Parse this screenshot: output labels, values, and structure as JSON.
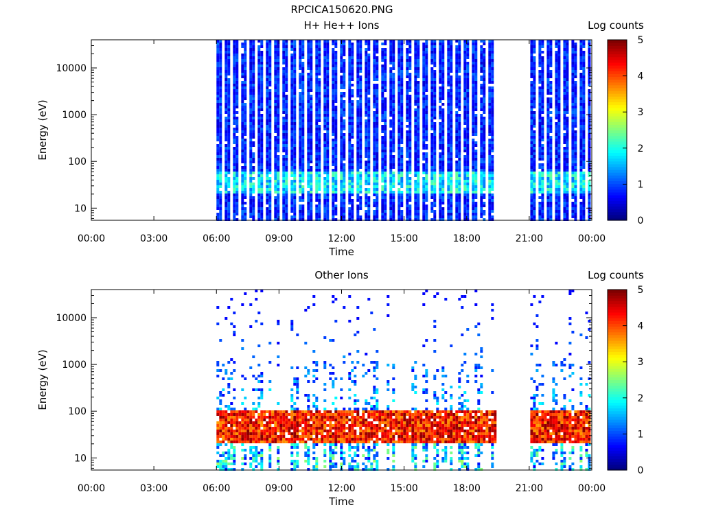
{
  "figure": {
    "filename": "RPCICA150620.PNG"
  },
  "chart_data": [
    {
      "type": "heatmap",
      "title": "H+ He++ Ions",
      "xlabel": "Time",
      "ylabel": "Energy (eV)",
      "colorbar_label": "Log counts",
      "x_tick_labels": [
        "00:00",
        "03:00",
        "06:00",
        "09:00",
        "12:00",
        "15:00",
        "18:00",
        "21:00",
        "00:00"
      ],
      "xlim_hours": [
        0,
        24
      ],
      "ylim_ev": [
        5.5,
        40000
      ],
      "y_scale": "log",
      "y_tick_labels": [
        "10",
        "100",
        "1000",
        "10000"
      ],
      "y_tick_values": [
        10,
        100,
        1000,
        10000
      ],
      "colorbar_ticks": [
        "0",
        "1",
        "2",
        "3",
        "4",
        "5"
      ],
      "colorbar_range": [
        0,
        5
      ],
      "data_intervals_hours": [
        [
          6.0,
          19.35
        ],
        [
          21.05,
          23.9
        ]
      ],
      "band_ev": [
        20,
        60
      ],
      "band_level_log_counts": 1.8,
      "background_level_log_counts": 0.8
    },
    {
      "type": "heatmap",
      "title": "Other Ions",
      "xlabel": "Time",
      "ylabel": "Energy (eV)",
      "colorbar_label": "Log counts",
      "x_tick_labels": [
        "00:00",
        "03:00",
        "06:00",
        "09:00",
        "12:00",
        "15:00",
        "18:00",
        "21:00",
        "00:00"
      ],
      "xlim_hours": [
        0,
        24
      ],
      "ylim_ev": [
        5.5,
        40000
      ],
      "y_scale": "log",
      "y_tick_labels": [
        "10",
        "100",
        "1000",
        "10000"
      ],
      "y_tick_values": [
        10,
        100,
        1000,
        10000
      ],
      "colorbar_ticks": [
        "0",
        "1",
        "2",
        "3",
        "4",
        "5"
      ],
      "colorbar_range": [
        0,
        5
      ],
      "data_intervals_hours": [
        [
          6.0,
          19.35
        ],
        [
          21.05,
          23.9
        ]
      ],
      "band_ev": [
        20,
        100
      ],
      "band_level_log_counts": 4.3,
      "background_level_log_counts": 0.6
    }
  ]
}
